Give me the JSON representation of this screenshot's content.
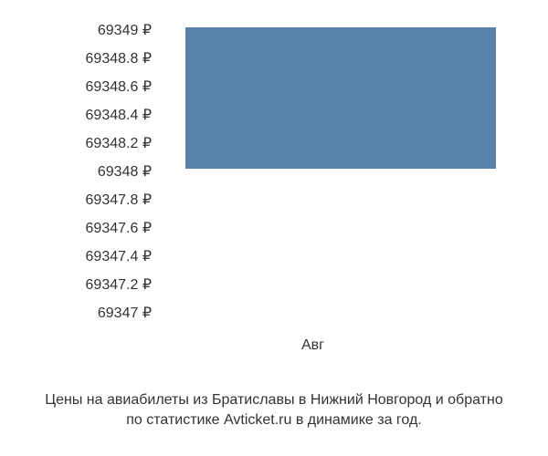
{
  "chart": {
    "type": "bar",
    "y_axis": {
      "labels": [
        "69349 ₽",
        "69348.8 ₽",
        "69348.6 ₽",
        "69348.4 ₽",
        "69348.2 ₽",
        "69348 ₽",
        "69347.8 ₽",
        "69347.6 ₽",
        "69347.4 ₽",
        "69347.2 ₽",
        "69347 ₽"
      ],
      "min": 69347,
      "max": 69349,
      "tick_step": 0.2,
      "font_size": 16,
      "color": "#333333"
    },
    "x_axis": {
      "labels": [
        "Авг"
      ],
      "font_size": 16,
      "color": "#333333"
    },
    "bars": [
      {
        "category": "Авг",
        "value": 69349,
        "baseline": 69348,
        "color": "#5581ab"
      }
    ],
    "background_color": "#ffffff",
    "bar_width_ratio": 1.0
  },
  "caption": {
    "line1": "Цены на авиабилеты из Братиславы в Нижний Новгород и обратно",
    "line2": "по статистике Avticket.ru в динамике за год.",
    "font_size": 16,
    "color": "#333333"
  }
}
